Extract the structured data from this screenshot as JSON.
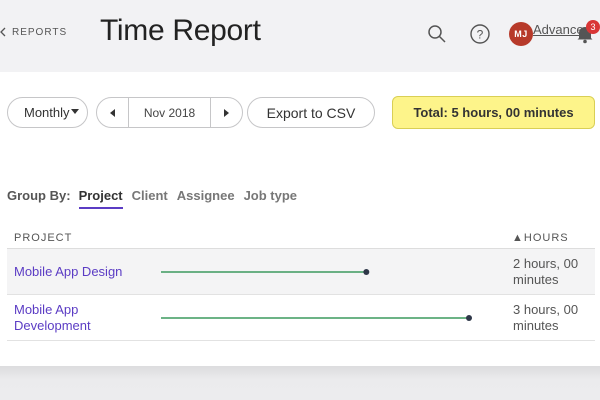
{
  "header": {
    "back_label": "REPORTS",
    "title": "Time Report",
    "avatar_initials": "MJ",
    "advanced_link": "Advanced R",
    "notification_count": "3"
  },
  "toolbar": {
    "period_type": "Monthly",
    "period": "Nov 2018",
    "export_label": "Export to CSV",
    "total": "Total: 5 hours, 00 minutes"
  },
  "group_by": {
    "label": "Group By:",
    "options": [
      "Project",
      "Client",
      "Assignee",
      "Job type"
    ],
    "active": "Project"
  },
  "table": {
    "columns": [
      "PROJECT",
      "▲HOURS"
    ],
    "rows": [
      {
        "project": "Mobile App Design",
        "hours": "2 hours, 00 minutes",
        "value": 2
      },
      {
        "project": "Mobile App Development",
        "hours": "3 hours, 00 minutes",
        "value": 3
      }
    ],
    "max_value": 3
  },
  "colors": {
    "accent": "#5b3cc4",
    "bar": "#3c9a5f",
    "bar_dot": "#2e3748",
    "total_bg": "#fdf48a",
    "avatar_bg": "#b73a2a",
    "badge_bg": "#d93636"
  }
}
